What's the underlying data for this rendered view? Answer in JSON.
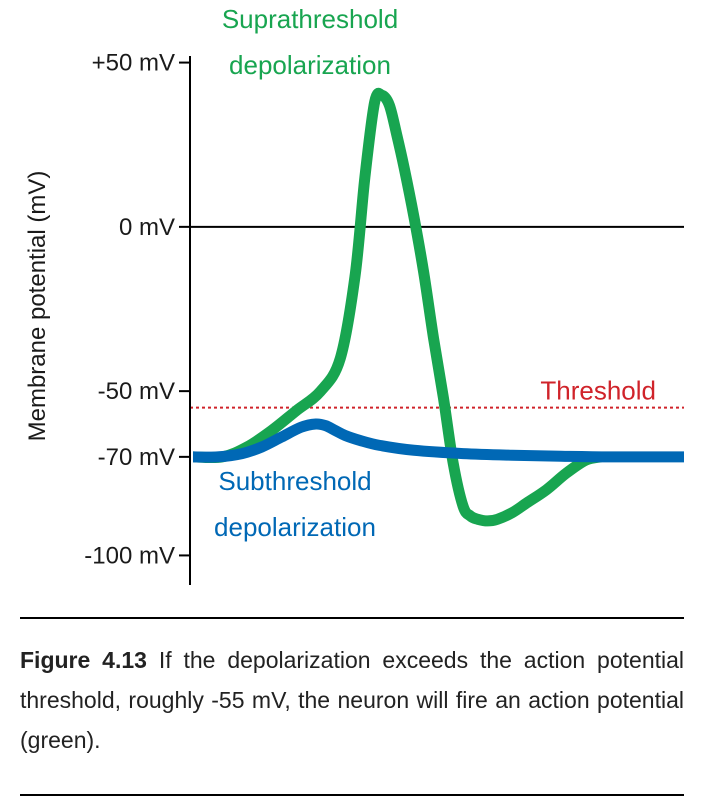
{
  "chart_data": {
    "type": "line",
    "ylabel": "Membrane potential (mV)",
    "xlabel": "",
    "y_ticks": [
      {
        "value": 50,
        "label": "+50 mV"
      },
      {
        "value": 0,
        "label": "0 mV"
      },
      {
        "value": -50,
        "label": "-50 mV"
      },
      {
        "value": -70,
        "label": "-70 mV"
      },
      {
        "value": -100,
        "label": "-100 mV"
      }
    ],
    "ylim": [
      -109,
      52
    ],
    "xlim": [
      0,
      100
    ],
    "reference_lines": [
      {
        "name": "zero",
        "value": 0,
        "color": "#000000",
        "style": "solid"
      },
      {
        "name": "threshold",
        "label": "Threshold",
        "value": -55,
        "color": "#d0232a",
        "style": "dotted"
      }
    ],
    "series": [
      {
        "id": "suprathreshold",
        "label_lines": [
          "Suprathreshold",
          "depolarization"
        ],
        "color": "#18a550",
        "x": [
          0,
          6,
          11,
          16,
          21,
          26,
          30,
          33,
          35,
          37,
          38.5,
          40,
          41.5,
          43,
          45,
          47,
          49,
          51,
          53,
          55,
          56.5,
          58,
          60,
          62,
          65,
          68,
          72,
          76,
          80,
          83
        ],
        "y": [
          -70,
          -70,
          -67,
          -62,
          -56,
          -50,
          -40,
          -15,
          15,
          38,
          40,
          37,
          28,
          18,
          3,
          -14,
          -34,
          -52,
          -72,
          -85,
          -88,
          -89,
          -89.5,
          -89,
          -87,
          -84,
          -80,
          -75,
          -71,
          -70
        ]
      },
      {
        "id": "subthreshold",
        "label_lines": [
          "Subthreshold",
          "depolarization"
        ],
        "color": "#0068b5",
        "x": [
          0,
          5,
          10,
          14,
          18,
          22,
          25,
          27,
          29,
          31,
          34,
          38,
          45,
          55,
          65,
          75,
          85,
          100
        ],
        "y": [
          -70,
          -70,
          -69,
          -67,
          -64,
          -61,
          -60,
          -60.5,
          -62,
          -63.5,
          -65,
          -66.5,
          -68,
          -69,
          -69.5,
          -69.8,
          -70,
          -70
        ]
      }
    ]
  },
  "caption": {
    "figure_label": "Figure 4.13",
    "text": "If the depolarization exceeds the action potential threshold, roughly -55 mV, the neuron will fire an action potential (green)."
  }
}
